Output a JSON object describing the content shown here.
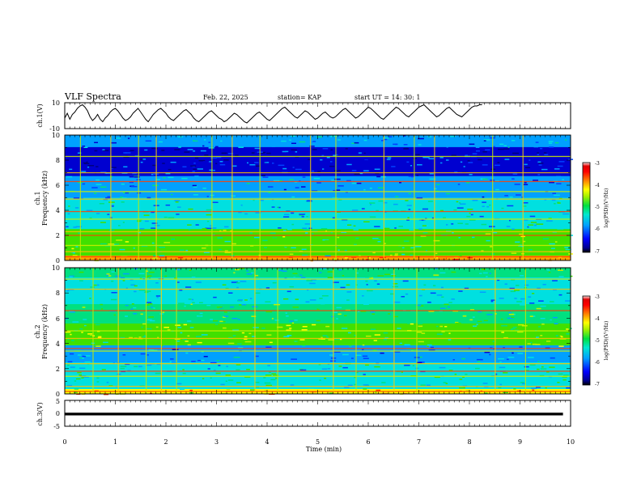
{
  "header": {
    "title": "VLF Spectra",
    "date": "Feb. 22, 2025",
    "station": "station= KAP",
    "start": "start  UT  =   14: 30: 1"
  },
  "chart_data": [
    {
      "type": "line",
      "name": "ch1-waveform",
      "ylabel": "ch.1(V)",
      "ylim": [
        -10,
        10
      ],
      "yticks": [
        "10",
        "-10"
      ],
      "xlim": [
        0,
        10
      ],
      "series": [
        {
          "name": "ch.1 amplitude (approx.)",
          "x_step": 0.05,
          "values": [
            -2,
            2,
            -3,
            1,
            3,
            6,
            8,
            9,
            7,
            4,
            -1,
            -4,
            -2,
            1,
            -3,
            -5,
            -2,
            0,
            3,
            5,
            6,
            4,
            1,
            -2,
            -4,
            -3,
            -1,
            2,
            4,
            6,
            3,
            0,
            -3,
            -5,
            -2,
            1,
            3,
            5,
            6,
            4,
            2,
            -1,
            -3,
            -4,
            -2,
            0,
            2,
            4,
            5,
            3,
            1,
            -2,
            -4,
            -5,
            -3,
            -1,
            1,
            3,
            4,
            2,
            0,
            -2,
            -3,
            -5,
            -4,
            -2,
            0,
            2,
            1,
            -1,
            -3,
            -5,
            -6,
            -4,
            -2,
            0,
            2,
            3,
            1,
            -1,
            -3,
            -4,
            -2,
            0,
            2,
            4,
            6,
            7,
            5,
            3,
            1,
            -1,
            -2,
            0,
            2,
            4,
            3,
            1,
            -1,
            -3,
            -2,
            0,
            2,
            3,
            1,
            -1,
            -2,
            -1,
            1,
            3,
            5,
            6,
            4,
            2,
            0,
            -2,
            -1,
            1,
            3,
            5,
            7,
            6,
            4,
            2,
            0,
            -2,
            -3,
            -1,
            1,
            3,
            5,
            7,
            6,
            4,
            2,
            0,
            -1,
            1,
            3,
            5,
            7,
            8,
            9,
            7,
            5,
            3,
            1,
            -1,
            0,
            2,
            4,
            6,
            7,
            5,
            3,
            1,
            0,
            -1,
            1,
            3,
            5,
            7,
            8,
            8,
            9,
            9
          ]
        }
      ]
    },
    {
      "type": "heatmap",
      "name": "ch1-spectrogram",
      "ylabel": "Frequency (kHz)",
      "panel_label": "ch.1",
      "ylim": [
        0,
        10
      ],
      "yticks": [
        "0",
        "2",
        "4",
        "6",
        "8",
        "10"
      ],
      "xlim": [
        0,
        10
      ],
      "colorbar": {
        "label": "log(PSD)(V²/Hz)",
        "range": [
          -7,
          -3
        ],
        "ticks": [
          "-3",
          "-4",
          "-5",
          "-6",
          "-7"
        ]
      },
      "bands_khz": [
        0.3,
        0.7,
        1.2,
        2.0,
        2.3,
        3.3,
        3.9,
        4.9,
        5.5,
        6.3,
        7.0,
        8.3
      ],
      "spike_times_min": [
        0.3,
        0.9,
        1.45,
        1.8,
        2.9,
        3.3,
        3.85,
        4.85,
        5.35,
        6.3,
        6.9,
        7.3,
        8.45,
        9.05
      ]
    },
    {
      "type": "heatmap",
      "name": "ch2-spectrogram",
      "ylabel": "Frequency (kHz)",
      "panel_label": "ch.2",
      "ylim": [
        0,
        10
      ],
      "yticks": [
        "0",
        "2",
        "4",
        "6",
        "8",
        "10"
      ],
      "xlim": [
        0,
        10
      ],
      "colorbar": {
        "label": "log(PSD)(V²/Hz)",
        "range": [
          -7,
          -3
        ],
        "ticks": [
          "-3",
          "-4",
          "-5",
          "-6",
          "-7"
        ]
      },
      "bands_khz": [
        0.2,
        0.6,
        1.4,
        1.8,
        2.4,
        3.4,
        3.6,
        4.4,
        5.0,
        6.6,
        8.3,
        9.1
      ],
      "spike_times_min": [
        0.55,
        1.05,
        1.6,
        1.9,
        2.2,
        3.75,
        4.2,
        5.3,
        5.75,
        6.5,
        6.95,
        8.5,
        9.1
      ]
    },
    {
      "type": "line",
      "name": "ch3-waveform",
      "ylabel": "ch.3(V)",
      "ylim": [
        -5,
        5
      ],
      "yticks": [
        "5",
        "0",
        "-5"
      ],
      "xlim": [
        0,
        10
      ],
      "xlabel": "Time  (min)",
      "xticks": [
        "0",
        "1",
        "2",
        "3",
        "4",
        "5",
        "6",
        "7",
        "8",
        "9",
        "10"
      ],
      "series": [
        {
          "name": "ch.3 level (approx.)",
          "x": [
            0,
            9.85
          ],
          "values": [
            -0.3,
            -0.3
          ],
          "band_halfwidth": 0.55
        }
      ]
    }
  ],
  "colors": {
    "colormap": [
      "#000080",
      "#0000d0",
      "#0040ff",
      "#00a0ff",
      "#00e0e0",
      "#00e080",
      "#40e000",
      "#c0f000",
      "#ffff00",
      "#ffa000",
      "#ff3000",
      "#d00000",
      "#ffe0e0"
    ],
    "line": "#000000",
    "frame": "#000000"
  }
}
